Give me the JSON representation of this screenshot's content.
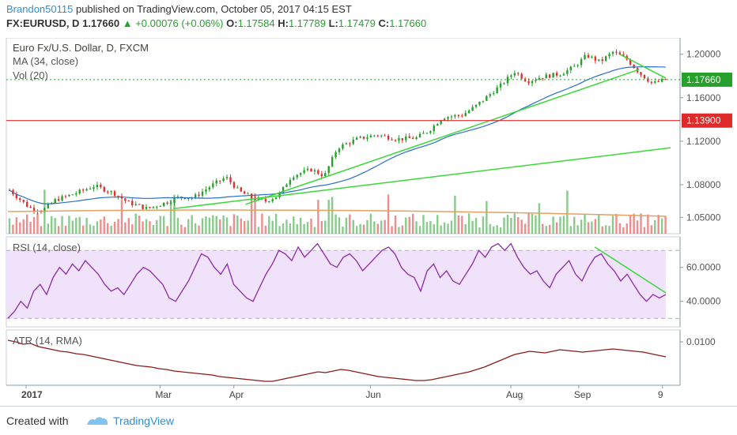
{
  "header": {
    "author": "Brandon50115",
    "published_text": "published on TradingView.com, October 05, 2017 04:15 EST",
    "symbol": "FX:EURUSD, D",
    "last": "1.17660",
    "change": "+0.00076 (+0.06%)",
    "o_label": "O:",
    "o_value": "1.17584",
    "h_label": "H:",
    "h_value": "1.17789",
    "l_label": "L:",
    "l_value": "1.17479",
    "c_label": "C:",
    "c_value": "1.17660"
  },
  "footer": {
    "created_with": "Created with",
    "brand": "TradingView"
  },
  "colors": {
    "up": "#27a02c",
    "down": "#e03030",
    "ma": "#2a6fc8",
    "trend": "#3ad83a",
    "hline": "#e02a2a",
    "rsi": "#8a2aa8",
    "rsi_band": "#f1e2fb",
    "atr": "#8b1a1a",
    "vol_ma": "#e8a060",
    "axis_blue": "#2f8fd6"
  },
  "chart_data": [
    {
      "type": "candlestick",
      "title": "Euro Fx/U.S. Dollar, D, FXCM",
      "indicators": [
        "MA (34, close)",
        "Vol (20)"
      ],
      "x_ticks": [
        "2017",
        "Mar",
        "Apr",
        "Jun",
        "Aug",
        "Sep",
        "9"
      ],
      "y_ticks": [
        "1.20000",
        "1.16000",
        "1.12000",
        "1.08000",
        "1.05000"
      ],
      "ylim": [
        1.035,
        1.215
      ],
      "last_price_label": "1.17660",
      "last_price": 1.1766,
      "horizontal_line_label": "1.13900",
      "horizontal_line": 1.139,
      "close_path": [
        {
          "x": 0.0,
          "y": 1.075
        },
        {
          "x": 0.03,
          "y": 1.059
        },
        {
          "x": 0.05,
          "y": 1.056
        },
        {
          "x": 0.07,
          "y": 1.066
        },
        {
          "x": 0.1,
          "y": 1.072
        },
        {
          "x": 0.13,
          "y": 1.079
        },
        {
          "x": 0.16,
          "y": 1.072
        },
        {
          "x": 0.18,
          "y": 1.064
        },
        {
          "x": 0.21,
          "y": 1.058
        },
        {
          "x": 0.24,
          "y": 1.064
        },
        {
          "x": 0.26,
          "y": 1.069
        },
        {
          "x": 0.28,
          "y": 1.068
        },
        {
          "x": 0.31,
          "y": 1.08
        },
        {
          "x": 0.33,
          "y": 1.087
        },
        {
          "x": 0.35,
          "y": 1.074
        },
        {
          "x": 0.37,
          "y": 1.068
        },
        {
          "x": 0.39,
          "y": 1.065
        },
        {
          "x": 0.41,
          "y": 1.07
        },
        {
          "x": 0.43,
          "y": 1.088
        },
        {
          "x": 0.46,
          "y": 1.094
        },
        {
          "x": 0.48,
          "y": 1.088
        },
        {
          "x": 0.5,
          "y": 1.114
        },
        {
          "x": 0.53,
          "y": 1.122
        },
        {
          "x": 0.56,
          "y": 1.126
        },
        {
          "x": 0.59,
          "y": 1.122
        },
        {
          "x": 0.62,
          "y": 1.123
        },
        {
          "x": 0.64,
          "y": 1.13
        },
        {
          "x": 0.66,
          "y": 1.142
        },
        {
          "x": 0.69,
          "y": 1.144
        },
        {
          "x": 0.71,
          "y": 1.152
        },
        {
          "x": 0.73,
          "y": 1.162
        },
        {
          "x": 0.75,
          "y": 1.172
        },
        {
          "x": 0.77,
          "y": 1.184
        },
        {
          "x": 0.79,
          "y": 1.175
        },
        {
          "x": 0.81,
          "y": 1.179
        },
        {
          "x": 0.84,
          "y": 1.182
        },
        {
          "x": 0.86,
          "y": 1.188
        },
        {
          "x": 0.88,
          "y": 1.199
        },
        {
          "x": 0.9,
          "y": 1.193
        },
        {
          "x": 0.92,
          "y": 1.202
        },
        {
          "x": 0.94,
          "y": 1.196
        },
        {
          "x": 0.96,
          "y": 1.183
        },
        {
          "x": 0.98,
          "y": 1.173
        },
        {
          "x": 1.0,
          "y": 1.1766
        }
      ]
    },
    {
      "type": "line",
      "title": "RSI (14, close)",
      "y_ticks": [
        "60.0000",
        "40.0000"
      ],
      "ylim": [
        25,
        78
      ],
      "bands": [
        70,
        30
      ],
      "values": [
        30,
        34,
        40,
        36,
        46,
        50,
        44,
        54,
        60,
        56,
        62,
        58,
        64,
        60,
        56,
        50,
        46,
        48,
        44,
        50,
        56,
        60,
        58,
        54,
        50,
        42,
        40,
        46,
        52,
        60,
        68,
        66,
        60,
        56,
        62,
        50,
        46,
        42,
        40,
        48,
        56,
        62,
        70,
        68,
        64,
        72,
        66,
        70,
        74,
        68,
        62,
        60,
        66,
        68,
        64,
        58,
        62,
        66,
        70,
        72,
        68,
        60,
        56,
        54,
        46,
        58,
        62,
        54,
        58,
        52,
        50,
        56,
        62,
        70,
        66,
        72,
        74,
        70,
        74,
        66,
        60,
        56,
        58,
        52,
        48,
        56,
        60,
        64,
        56,
        52,
        60,
        66,
        68,
        62,
        58,
        52,
        56,
        50,
        44,
        40,
        44,
        42,
        44
      ]
    },
    {
      "type": "line",
      "title": "ATR (14, RMA)",
      "y_ticks": [
        "0.0100"
      ],
      "ylim": [
        0.0045,
        0.0115
      ],
      "values": [
        0.0102,
        0.01,
        0.0097,
        0.0098,
        0.0094,
        0.0092,
        0.009,
        0.0088,
        0.0087,
        0.0085,
        0.0084,
        0.0082,
        0.008,
        0.0078,
        0.0076,
        0.0074,
        0.0072,
        0.007,
        0.0069,
        0.0068,
        0.0066,
        0.0065,
        0.0063,
        0.0062,
        0.0061,
        0.006,
        0.0059,
        0.0058,
        0.0056,
        0.0055,
        0.0054,
        0.0053,
        0.0052,
        0.0051,
        0.005,
        0.005,
        0.0052,
        0.0054,
        0.0056,
        0.0058,
        0.006,
        0.0062,
        0.0061,
        0.0063,
        0.0065,
        0.0064,
        0.0062,
        0.006,
        0.0058,
        0.0056,
        0.0055,
        0.0054,
        0.0053,
        0.0052,
        0.0051,
        0.0051,
        0.0052,
        0.0054,
        0.0056,
        0.0058,
        0.006,
        0.0062,
        0.0065,
        0.0068,
        0.0072,
        0.0076,
        0.008,
        0.0084,
        0.0086,
        0.0088,
        0.0087,
        0.0086,
        0.0088,
        0.009,
        0.0089,
        0.0088,
        0.0087,
        0.0088,
        0.0089,
        0.009,
        0.0091,
        0.009,
        0.0089,
        0.0088,
        0.0087,
        0.0085,
        0.0083,
        0.0081
      ]
    }
  ]
}
